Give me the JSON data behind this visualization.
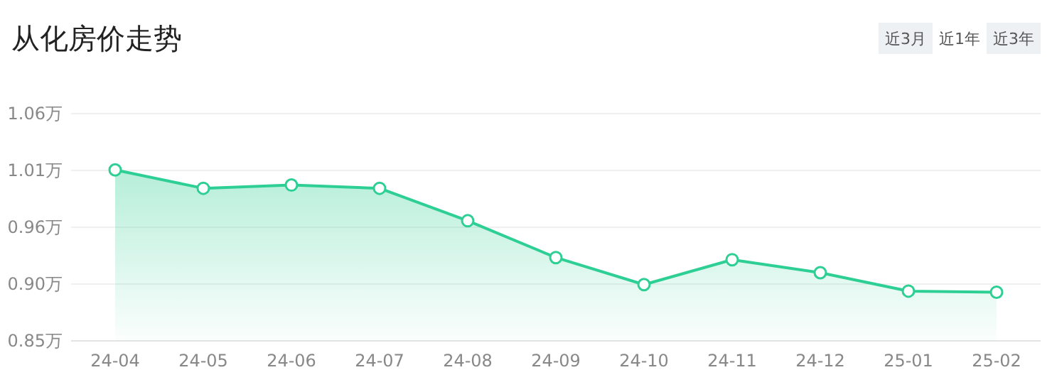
{
  "chart_data": {
    "type": "area",
    "title": "从化房价走势",
    "annotations": [
      "近3月",
      "近1年",
      "近3年"
    ],
    "categories": [
      "24-04",
      "24-05",
      "24-06",
      "24-07",
      "24-08",
      "24-09",
      "24-10",
      "24-11",
      "24-12",
      "25-01",
      "25-02"
    ],
    "series": [
      {
        "color": "#2ecf94",
        "values": [
          1.008,
          0.991,
          0.994,
          0.991,
          0.961,
          0.927,
          0.902,
          0.925,
          0.913,
          0.896,
          0.895
        ]
      }
    ],
    "ylim": [
      0.85,
      1.06
    ],
    "yticks": [
      {
        "value": 0.85,
        "label": "0.85万"
      },
      {
        "value": 0.9025,
        "label": "0.90万"
      },
      {
        "value": 0.955,
        "label": "0.96万"
      },
      {
        "value": 1.0075,
        "label": "1.01万"
      },
      {
        "value": 1.06,
        "label": "1.06万"
      }
    ],
    "grid": "y",
    "marker": "circle"
  }
}
